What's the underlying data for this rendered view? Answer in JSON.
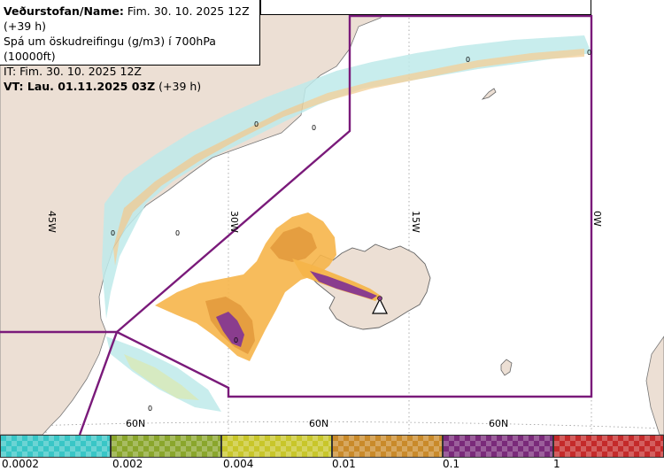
{
  "info": {
    "line1_bold": "Veðurstofan/Name:",
    "line1_rest": "Fim. 30. 10. 2025 12Z (+39 h)",
    "line2": "Spá um öskudreifingu (g/m3) í 700hPa (10000ft)",
    "line3": "IT: Fim. 30. 10. 2025 12Z",
    "line4_bold": "VT: Lau. 01.11.2025 03Z",
    "line4_rest": "(+39 h)"
  },
  "map": {
    "longitude_labels": [
      "45W",
      "30W",
      "15W",
      "0W"
    ],
    "latitude_labels": [
      "60N",
      "60N",
      "60N"
    ],
    "contour_labels": [
      "0",
      "0",
      "0",
      "0",
      "0",
      "0",
      "0"
    ],
    "colors": {
      "sea": "#ffffff",
      "land": "#ecdfd4",
      "coast": "#777777",
      "region_border": "#7a1a7a",
      "ash_low": "#f6b54a",
      "ash_mid": "#e39a3c",
      "ash_high": "#8a3d8e",
      "trace_cyan": "#7fe3e3",
      "trace_green": "#c9d86a"
    }
  },
  "legend": {
    "segments": [
      {
        "color": "#39c6c6"
      },
      {
        "color": "#8aa62c"
      },
      {
        "color": "#c8c62a"
      },
      {
        "color": "#c98a2a"
      },
      {
        "color": "#7a2a7a"
      },
      {
        "color": "#c42a2a"
      }
    ],
    "labels": [
      "0.0002",
      "0.002",
      "0.004",
      "0.01",
      "0.1",
      "1"
    ]
  }
}
